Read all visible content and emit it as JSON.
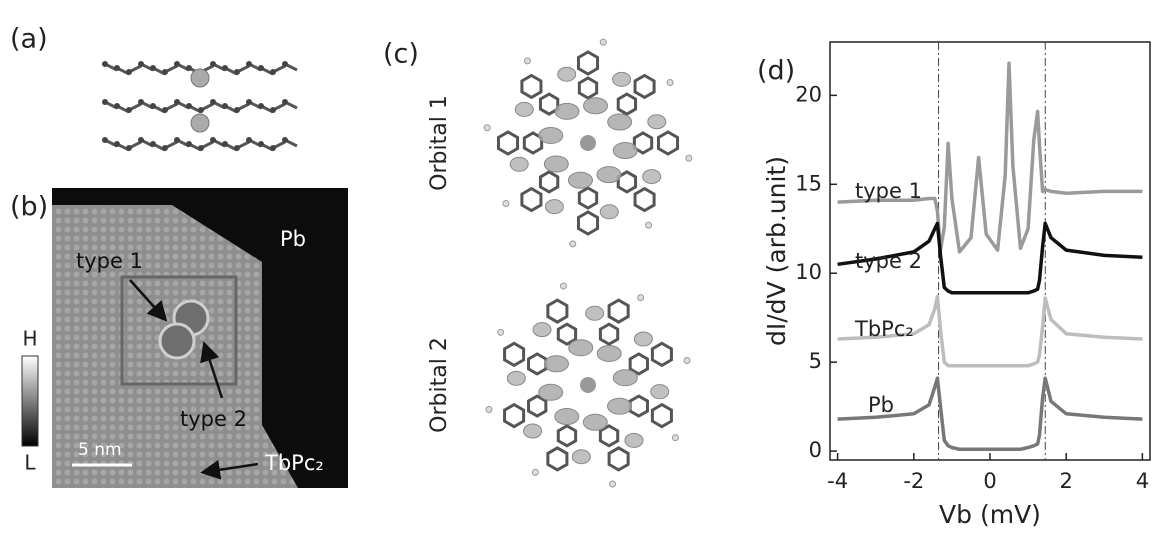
{
  "figure": {
    "panel_a": {
      "label": "(a)"
    },
    "panel_b": {
      "label": "(b)",
      "region_label": "Pb",
      "type1_label": "type 1",
      "type2_label": "type 2",
      "molecule_label": "TbPc₂",
      "scale_label": "5 nm",
      "colorbar_high": "H",
      "colorbar_low": "L"
    },
    "panel_c": {
      "label": "(c)",
      "orbital1_label": "Orbital 1",
      "orbital2_label": "Orbital 2"
    },
    "panel_d": {
      "label": "(d)"
    }
  },
  "chart_data": {
    "type": "line",
    "xlabel": "Vb (mV)",
    "ylabel": "dI/dV (arb.unit)",
    "x": [
      -4,
      -3,
      -2,
      -1.6,
      -1.45,
      -1.38,
      -1.3,
      -1.2,
      -1.1,
      -1.0,
      -0.8,
      -0.5,
      -0.3,
      -0.1,
      0.2,
      0.4,
      0.5,
      0.6,
      0.8,
      1.0,
      1.15,
      1.25,
      1.3,
      1.38,
      1.45,
      1.6,
      2,
      3,
      4
    ],
    "series": [
      {
        "name": "type 1",
        "color": "#9a9a9a",
        "values": [
          14.0,
          14.1,
          14.1,
          14.2,
          14.2,
          13.5,
          11.3,
          12.6,
          17.3,
          14.2,
          11.2,
          12.0,
          16.5,
          12.2,
          11.3,
          15.5,
          21.8,
          16.0,
          11.4,
          12.5,
          17.5,
          19.1,
          17.2,
          14.6,
          14.7,
          14.6,
          14.5,
          14.6,
          14.6
        ]
      },
      {
        "name": "type 2",
        "color": "#111111",
        "values": [
          10.5,
          10.8,
          11.2,
          11.8,
          12.5,
          12.8,
          11.0,
          9.2,
          9.0,
          8.9,
          8.9,
          8.9,
          8.9,
          8.9,
          8.9,
          8.9,
          8.9,
          8.9,
          8.9,
          8.9,
          9.0,
          9.1,
          9.6,
          11.5,
          12.8,
          12.0,
          11.3,
          11.0,
          10.9
        ]
      },
      {
        "name": "TbPc₂",
        "color": "#bdbdbd",
        "values": [
          6.3,
          6.4,
          6.6,
          7.1,
          8.0,
          8.7,
          6.8,
          5.0,
          4.8,
          4.8,
          4.8,
          4.8,
          4.8,
          4.8,
          4.8,
          4.8,
          4.8,
          4.8,
          4.8,
          4.8,
          4.9,
          5.0,
          5.4,
          7.0,
          8.6,
          7.4,
          6.6,
          6.4,
          6.3
        ]
      },
      {
        "name": "Pb",
        "color": "#777777",
        "values": [
          1.8,
          1.9,
          2.1,
          2.6,
          3.6,
          4.1,
          2.5,
          0.6,
          0.3,
          0.2,
          0.1,
          0.1,
          0.1,
          0.1,
          0.1,
          0.1,
          0.1,
          0.1,
          0.1,
          0.2,
          0.3,
          0.4,
          0.9,
          3.0,
          4.1,
          2.8,
          2.1,
          1.9,
          1.8
        ]
      }
    ],
    "xlim": [
      -4.2,
      4.2
    ],
    "xticks": [
      -4,
      -2,
      0,
      2,
      4
    ],
    "ylim": [
      -0.5,
      23
    ],
    "yticks": [
      0,
      5,
      10,
      15,
      20
    ],
    "vlines": [
      -1.35,
      1.45
    ]
  }
}
